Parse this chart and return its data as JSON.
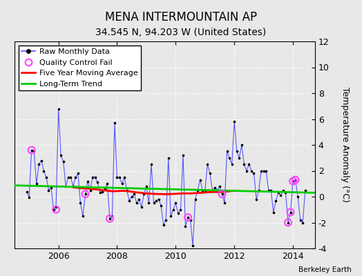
{
  "title": "MENA INTERMOUNTAIN AP",
  "subtitle": "34.545 N, 94.203 W (United States)",
  "credit": "Berkeley Earth",
  "ylabel": "Temperature Anomaly (°C)",
  "ylim": [
    -4,
    12
  ],
  "yticks": [
    -4,
    -2,
    0,
    2,
    4,
    6,
    8,
    10,
    12
  ],
  "xlim": [
    2004.5,
    2014.75
  ],
  "xticks": [
    2006,
    2008,
    2010,
    2012,
    2014
  ],
  "fig_bg_color": "#e8e8e8",
  "plot_bg_color": "#e8e8e8",
  "monthly_data": [
    [
      2004.917,
      0.4
    ],
    [
      2005.0,
      -0.05
    ],
    [
      2005.083,
      3.6
    ],
    [
      2005.167,
      3.5
    ],
    [
      2005.25,
      1.0
    ],
    [
      2005.333,
      2.5
    ],
    [
      2005.417,
      2.8
    ],
    [
      2005.5,
      2.0
    ],
    [
      2005.583,
      1.5
    ],
    [
      2005.667,
      0.5
    ],
    [
      2005.75,
      0.7
    ],
    [
      2005.833,
      -1.0
    ],
    [
      2005.917,
      -0.8
    ],
    [
      2006.0,
      6.8
    ],
    [
      2006.083,
      3.2
    ],
    [
      2006.167,
      2.7
    ],
    [
      2006.25,
      0.8
    ],
    [
      2006.333,
      1.5
    ],
    [
      2006.417,
      1.5
    ],
    [
      2006.5,
      0.8
    ],
    [
      2006.583,
      1.5
    ],
    [
      2006.667,
      1.8
    ],
    [
      2006.75,
      -0.5
    ],
    [
      2006.833,
      -1.5
    ],
    [
      2006.917,
      0.2
    ],
    [
      2007.0,
      1.2
    ],
    [
      2007.083,
      0.5
    ],
    [
      2007.167,
      1.5
    ],
    [
      2007.25,
      1.5
    ],
    [
      2007.333,
      1.1
    ],
    [
      2007.417,
      0.3
    ],
    [
      2007.5,
      0.4
    ],
    [
      2007.583,
      0.6
    ],
    [
      2007.667,
      1.0
    ],
    [
      2007.75,
      -1.7
    ],
    [
      2007.833,
      -1.5
    ],
    [
      2007.917,
      5.7
    ],
    [
      2008.0,
      1.5
    ],
    [
      2008.083,
      1.5
    ],
    [
      2008.167,
      1.0
    ],
    [
      2008.25,
      1.5
    ],
    [
      2008.333,
      0.5
    ],
    [
      2008.417,
      -0.3
    ],
    [
      2008.5,
      0.0
    ],
    [
      2008.583,
      0.2
    ],
    [
      2008.667,
      -0.5
    ],
    [
      2008.75,
      -0.2
    ],
    [
      2008.833,
      -0.8
    ],
    [
      2008.917,
      0.2
    ],
    [
      2009.0,
      0.8
    ],
    [
      2009.083,
      -0.5
    ],
    [
      2009.167,
      2.5
    ],
    [
      2009.25,
      -0.5
    ],
    [
      2009.333,
      -0.3
    ],
    [
      2009.417,
      -0.2
    ],
    [
      2009.5,
      -0.7
    ],
    [
      2009.583,
      -2.2
    ],
    [
      2009.667,
      -1.8
    ],
    [
      2009.75,
      3.0
    ],
    [
      2009.833,
      -1.5
    ],
    [
      2009.917,
      -1.0
    ],
    [
      2010.0,
      -0.5
    ],
    [
      2010.083,
      -1.3
    ],
    [
      2010.167,
      -1.0
    ],
    [
      2010.25,
      3.2
    ],
    [
      2010.333,
      -2.3
    ],
    [
      2010.417,
      -1.6
    ],
    [
      2010.5,
      -1.8
    ],
    [
      2010.583,
      -3.8
    ],
    [
      2010.667,
      -0.2
    ],
    [
      2010.75,
      0.5
    ],
    [
      2010.833,
      1.3
    ],
    [
      2010.917,
      0.5
    ],
    [
      2011.0,
      0.5
    ],
    [
      2011.083,
      2.5
    ],
    [
      2011.167,
      1.8
    ],
    [
      2011.25,
      0.5
    ],
    [
      2011.333,
      0.7
    ],
    [
      2011.417,
      0.5
    ],
    [
      2011.5,
      0.8
    ],
    [
      2011.583,
      0.2
    ],
    [
      2011.667,
      -0.5
    ],
    [
      2011.75,
      3.5
    ],
    [
      2011.833,
      3.0
    ],
    [
      2011.917,
      2.5
    ],
    [
      2012.0,
      5.8
    ],
    [
      2012.083,
      3.5
    ],
    [
      2012.167,
      3.0
    ],
    [
      2012.25,
      4.0
    ],
    [
      2012.333,
      2.5
    ],
    [
      2012.417,
      2.0
    ],
    [
      2012.5,
      2.5
    ],
    [
      2012.583,
      2.0
    ],
    [
      2012.667,
      1.8
    ],
    [
      2012.75,
      -0.2
    ],
    [
      2012.833,
      0.5
    ],
    [
      2012.917,
      2.0
    ],
    [
      2013.0,
      2.0
    ],
    [
      2013.083,
      2.0
    ],
    [
      2013.167,
      0.5
    ],
    [
      2013.25,
      0.5
    ],
    [
      2013.333,
      -1.2
    ],
    [
      2013.417,
      -0.3
    ],
    [
      2013.5,
      0.3
    ],
    [
      2013.583,
      0.1
    ],
    [
      2013.667,
      0.5
    ],
    [
      2013.75,
      0.3
    ],
    [
      2013.833,
      -2.0
    ],
    [
      2013.917,
      -1.2
    ],
    [
      2014.0,
      1.2
    ],
    [
      2014.083,
      1.3
    ],
    [
      2014.167,
      0.0
    ],
    [
      2014.25,
      -1.8
    ],
    [
      2014.333,
      -2.0
    ],
    [
      2014.417,
      0.5
    ]
  ],
  "qc_fail_points": [
    [
      2005.083,
      3.6
    ],
    [
      2005.917,
      -1.0
    ],
    [
      2006.917,
      0.2
    ],
    [
      2007.75,
      -1.7
    ],
    [
      2010.417,
      -1.6
    ],
    [
      2011.583,
      0.2
    ],
    [
      2013.833,
      -2.0
    ],
    [
      2013.917,
      -1.2
    ],
    [
      2014.0,
      1.2
    ],
    [
      2014.083,
      1.3
    ]
  ],
  "moving_avg": [
    [
      2006.5,
      0.72
    ],
    [
      2006.583,
      0.7
    ],
    [
      2006.667,
      0.68
    ],
    [
      2006.75,
      0.66
    ],
    [
      2006.833,
      0.65
    ],
    [
      2006.917,
      0.64
    ],
    [
      2007.0,
      0.63
    ],
    [
      2007.083,
      0.61
    ],
    [
      2007.167,
      0.59
    ],
    [
      2007.25,
      0.57
    ],
    [
      2007.333,
      0.55
    ],
    [
      2007.417,
      0.52
    ],
    [
      2007.5,
      0.5
    ],
    [
      2007.583,
      0.48
    ],
    [
      2007.667,
      0.46
    ],
    [
      2007.75,
      0.44
    ],
    [
      2007.833,
      0.42
    ],
    [
      2007.917,
      0.42
    ],
    [
      2008.0,
      0.43
    ],
    [
      2008.083,
      0.44
    ],
    [
      2008.167,
      0.45
    ],
    [
      2008.25,
      0.45
    ],
    [
      2008.333,
      0.43
    ],
    [
      2008.417,
      0.41
    ],
    [
      2008.5,
      0.38
    ],
    [
      2008.583,
      0.36
    ],
    [
      2008.667,
      0.33
    ],
    [
      2008.75,
      0.31
    ],
    [
      2008.833,
      0.29
    ],
    [
      2008.917,
      0.27
    ],
    [
      2009.0,
      0.25
    ],
    [
      2009.083,
      0.24
    ],
    [
      2009.167,
      0.23
    ],
    [
      2009.25,
      0.22
    ],
    [
      2009.333,
      0.21
    ],
    [
      2009.417,
      0.2
    ],
    [
      2009.5,
      0.2
    ],
    [
      2009.583,
      0.19
    ],
    [
      2009.667,
      0.19
    ],
    [
      2009.75,
      0.2
    ],
    [
      2009.833,
      0.2
    ],
    [
      2009.917,
      0.21
    ],
    [
      2010.0,
      0.22
    ],
    [
      2010.083,
      0.23
    ],
    [
      2010.167,
      0.24
    ],
    [
      2010.25,
      0.25
    ],
    [
      2010.333,
      0.25
    ],
    [
      2010.417,
      0.25
    ],
    [
      2010.5,
      0.25
    ],
    [
      2010.583,
      0.26
    ],
    [
      2010.667,
      0.27
    ],
    [
      2010.75,
      0.28
    ],
    [
      2010.833,
      0.29
    ],
    [
      2010.917,
      0.3
    ],
    [
      2011.0,
      0.32
    ],
    [
      2011.083,
      0.34
    ],
    [
      2011.167,
      0.35
    ],
    [
      2011.25,
      0.36
    ],
    [
      2011.333,
      0.36
    ],
    [
      2011.417,
      0.36
    ],
    [
      2011.5,
      0.36
    ],
    [
      2011.583,
      0.37
    ],
    [
      2011.667,
      0.38
    ],
    [
      2011.75,
      0.4
    ],
    [
      2011.833,
      0.42
    ],
    [
      2011.917,
      0.44
    ],
    [
      2012.0,
      0.46
    ]
  ],
  "trend_line": [
    [
      2004.5,
      0.87
    ],
    [
      2014.75,
      0.3
    ]
  ],
  "monthly_color": "#5555ff",
  "monthly_dot_color": "#000000",
  "moving_avg_color": "#ff0000",
  "trend_color": "#00cc00",
  "qc_color": "#ff44ff",
  "grid_color": "#ffffff",
  "title_fontsize": 12,
  "subtitle_fontsize": 10,
  "tick_fontsize": 9,
  "legend_fontsize": 8,
  "ylabel_fontsize": 9
}
